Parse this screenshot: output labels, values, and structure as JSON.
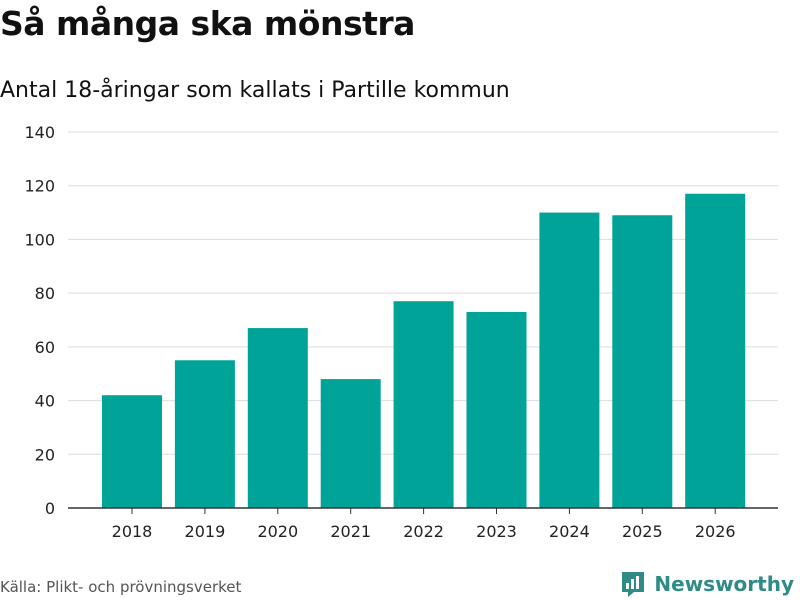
{
  "header": {
    "title": "Så många ska mönstra",
    "subtitle": "Antal 18-åringar som kallats i Partille kommun"
  },
  "footer": {
    "source": "Källa: Plikt- och prövningsverket",
    "brand": "Newsworthy"
  },
  "colors": {
    "bar": "#00a398",
    "grid": "#dddddd",
    "axis": "#333333",
    "brand": "#2e8b86"
  },
  "chart_data": {
    "type": "bar",
    "title": "Så många ska mönstra",
    "subtitle": "Antal 18-åringar som kallats i Partille kommun",
    "xlabel": "",
    "ylabel": "",
    "categories": [
      "2018",
      "2019",
      "2020",
      "2021",
      "2022",
      "2023",
      "2024",
      "2025",
      "2026"
    ],
    "values": [
      42,
      55,
      67,
      48,
      77,
      73,
      110,
      109,
      117
    ],
    "ylim": [
      0,
      140
    ],
    "yticks": [
      0,
      20,
      40,
      60,
      80,
      100,
      120,
      140
    ],
    "grid": true
  }
}
